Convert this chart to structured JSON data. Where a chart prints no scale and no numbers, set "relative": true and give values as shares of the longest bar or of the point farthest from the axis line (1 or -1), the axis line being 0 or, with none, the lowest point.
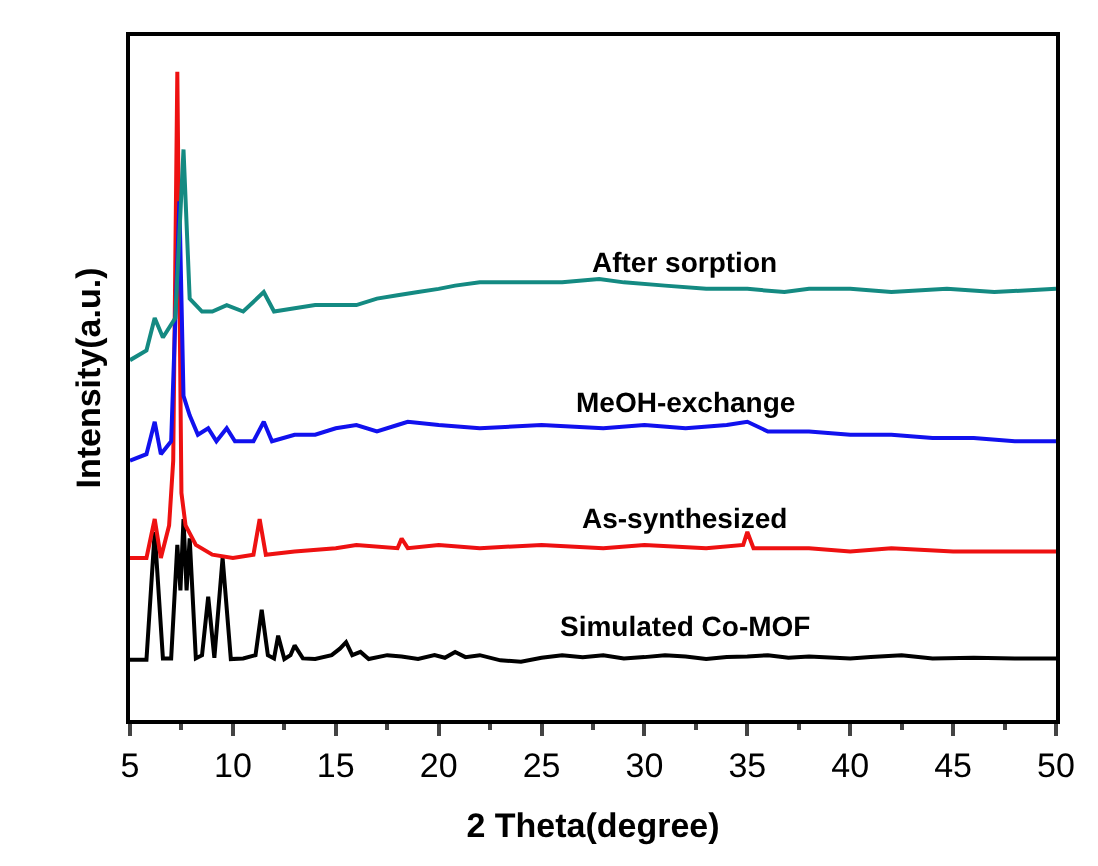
{
  "chart_data": {
    "type": "line",
    "relative": true,
    "xlabel": "2 Theta(degree)",
    "ylabel": "Intensity(a.u.)",
    "xlim": [
      5,
      50
    ],
    "xticks": [
      5,
      10,
      15,
      20,
      25,
      30,
      35,
      40,
      45,
      50
    ],
    "legend": false,
    "marker": "none",
    "line_style": "solid",
    "series": [
      {
        "name": "Simulated Co-MOF",
        "color": "#000000",
        "x": [
          5,
          5.8,
          6.2,
          6.6,
          7.0,
          7.3,
          7.45,
          7.6,
          7.75,
          7.9,
          8.2,
          8.5,
          8.8,
          9.1,
          9.5,
          9.9,
          10.5,
          11.1,
          11.4,
          11.7,
          12.0,
          12.2,
          12.5,
          12.8,
          13.0,
          13.4,
          14,
          14.8,
          15.2,
          15.5,
          15.8,
          16.2,
          16.6,
          17.5,
          18.2,
          19,
          19.8,
          20.3,
          20.8,
          21.3,
          22,
          23,
          24,
          25,
          26,
          27,
          28,
          29,
          30,
          31,
          32,
          33,
          34,
          35,
          36,
          37,
          38,
          40,
          41,
          42.5,
          44,
          46,
          48,
          50
        ],
        "values": [
          0.093,
          0.093,
          0.29,
          0.095,
          0.095,
          0.27,
          0.2,
          0.31,
          0.2,
          0.28,
          0.095,
          0.1,
          0.19,
          0.096,
          0.25,
          0.094,
          0.095,
          0.1,
          0.17,
          0.1,
          0.095,
          0.13,
          0.094,
          0.1,
          0.115,
          0.095,
          0.094,
          0.1,
          0.11,
          0.12,
          0.1,
          0.105,
          0.094,
          0.1,
          0.098,
          0.094,
          0.1,
          0.096,
          0.105,
          0.097,
          0.1,
          0.092,
          0.09,
          0.096,
          0.1,
          0.097,
          0.1,
          0.095,
          0.097,
          0.1,
          0.098,
          0.094,
          0.097,
          0.098,
          0.1,
          0.096,
          0.098,
          0.095,
          0.097,
          0.1,
          0.095,
          0.096,
          0.095,
          0.095
        ]
      },
      {
        "name": "As-synthesized",
        "color": "#ee1111",
        "x": [
          5,
          5.8,
          6.2,
          6.5,
          6.9,
          7.1,
          7.3,
          7.5,
          7.7,
          8.2,
          9,
          10,
          11,
          11.3,
          11.6,
          13,
          15,
          16,
          18,
          18.2,
          18.5,
          20,
          22,
          25,
          28,
          30,
          33,
          34.8,
          35,
          35.3,
          38,
          40,
          42,
          45,
          48,
          50
        ],
        "values": [
          0.25,
          0.25,
          0.31,
          0.25,
          0.3,
          0.4,
          1.0,
          0.35,
          0.3,
          0.27,
          0.255,
          0.25,
          0.255,
          0.31,
          0.255,
          0.26,
          0.265,
          0.27,
          0.265,
          0.28,
          0.265,
          0.27,
          0.265,
          0.27,
          0.265,
          0.27,
          0.265,
          0.27,
          0.29,
          0.265,
          0.265,
          0.26,
          0.265,
          0.26,
          0.26,
          0.26
        ]
      },
      {
        "name": "MeOH-exchange",
        "color": "#1111ee",
        "x": [
          5,
          5.8,
          6.2,
          6.5,
          7.0,
          7.4,
          7.6,
          7.9,
          8.3,
          8.8,
          9.2,
          9.7,
          10.1,
          11,
          11.5,
          11.9,
          13,
          14,
          15,
          16,
          17,
          18,
          18.5,
          20,
          22,
          25,
          28,
          30,
          32,
          34,
          35,
          36,
          38,
          40,
          42,
          44,
          46,
          48,
          50
        ],
        "values": [
          0.4,
          0.41,
          0.46,
          0.41,
          0.43,
          0.8,
          0.5,
          0.47,
          0.44,
          0.45,
          0.43,
          0.45,
          0.43,
          0.43,
          0.46,
          0.43,
          0.44,
          0.44,
          0.45,
          0.455,
          0.445,
          0.455,
          0.46,
          0.455,
          0.45,
          0.455,
          0.45,
          0.455,
          0.45,
          0.455,
          0.46,
          0.445,
          0.445,
          0.44,
          0.44,
          0.435,
          0.435,
          0.43,
          0.43
        ]
      },
      {
        "name": "After sorption",
        "color": "#148a82",
        "x": [
          5,
          5.8,
          6.2,
          6.6,
          7.2,
          7.6,
          7.9,
          8.5,
          9,
          9.7,
          10.5,
          11.5,
          12,
          13,
          14,
          15,
          16,
          17,
          18,
          19,
          20,
          20.8,
          22,
          24,
          26,
          27.8,
          29,
          31,
          33,
          35,
          36.8,
          38,
          40,
          42,
          44.7,
          47,
          50
        ],
        "values": [
          0.555,
          0.57,
          0.62,
          0.59,
          0.62,
          0.88,
          0.65,
          0.63,
          0.63,
          0.64,
          0.63,
          0.66,
          0.63,
          0.635,
          0.64,
          0.64,
          0.64,
          0.65,
          0.655,
          0.66,
          0.665,
          0.67,
          0.675,
          0.675,
          0.675,
          0.68,
          0.675,
          0.67,
          0.665,
          0.665,
          0.66,
          0.665,
          0.665,
          0.66,
          0.665,
          0.66,
          0.665
        ]
      }
    ]
  }
}
